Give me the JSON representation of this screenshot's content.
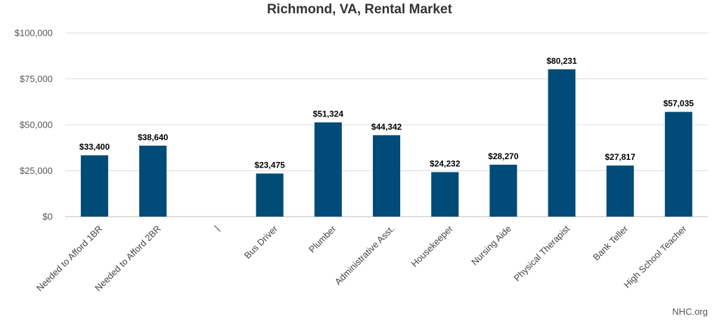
{
  "chart_data": {
    "type": "bar",
    "title": "Richmond, VA, Rental Market",
    "categories": [
      "Needed to Afford 1BR",
      "Needed to Afford 2BR",
      "|",
      "Bus Driver",
      "Plumber",
      "Administrative Asst.",
      "Housekeeper",
      "Nursing Aide",
      "Physical Therapist",
      "Bank Teller",
      "High School Teacher"
    ],
    "values": [
      33400,
      38640,
      null,
      23475,
      51324,
      44342,
      24232,
      28270,
      80231,
      27817,
      57035
    ],
    "data_labels": [
      "$33,400",
      "$38,640",
      "",
      "$23,475",
      "$51,324",
      "$44,342",
      "$24,232",
      "$28,270",
      "$80,231",
      "$27,817",
      "$57,035"
    ],
    "ylim": [
      0,
      100000
    ],
    "yticks": [
      0,
      25000,
      50000,
      75000,
      100000
    ],
    "ytick_labels": [
      "$0",
      "$25,000",
      "$50,000",
      "$75,000",
      "$100,000"
    ],
    "xlabel": "",
    "ylabel": "",
    "grid": true,
    "bar_color": "#004b78"
  },
  "source_text": "NHC.org"
}
